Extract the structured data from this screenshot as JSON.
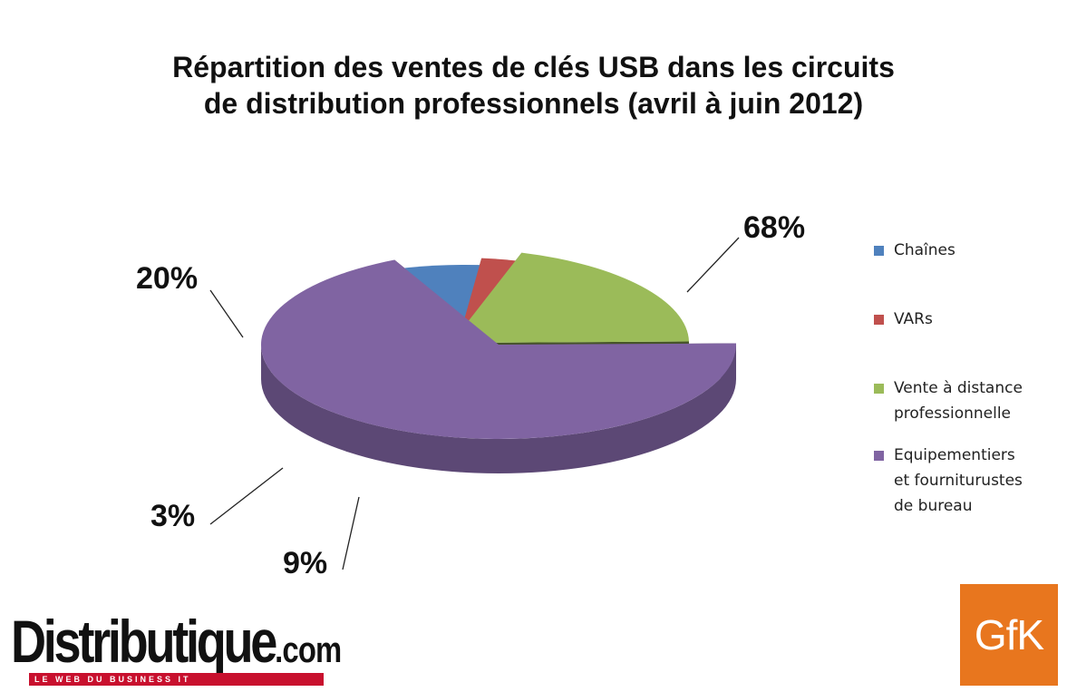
{
  "chart_data": {
    "type": "pie",
    "title_lines": [
      "Répartition des ventes de clés USB dans les circuits",
      "de distribution professionnels (avril à juin 2012)"
    ],
    "slices": [
      {
        "label_lines": [
          "Chaînes"
        ],
        "value": 9,
        "label": "9%",
        "color": "#4f81bd"
      },
      {
        "label_lines": [
          "VARs"
        ],
        "value": 3,
        "label": "3%",
        "color": "#c0504d"
      },
      {
        "label_lines": [
          "Vente à distance",
          "professionnelle"
        ],
        "value": 20,
        "label": "20%",
        "color": "#9bbb59"
      },
      {
        "label_lines": [
          "Equipementiers",
          "et fourniturustes",
          "de bureau"
        ],
        "value": 68,
        "label": "68%",
        "color": "#8064a2"
      }
    ],
    "legend_position": "right",
    "style": "3d-exploded"
  },
  "logos": {
    "distributique": {
      "brand": "Distributique",
      "suffix": ".com",
      "tagline": "LE WEB DU BUSINESS IT"
    },
    "gfk": {
      "text": "GfK",
      "color": "#e8761e"
    }
  }
}
